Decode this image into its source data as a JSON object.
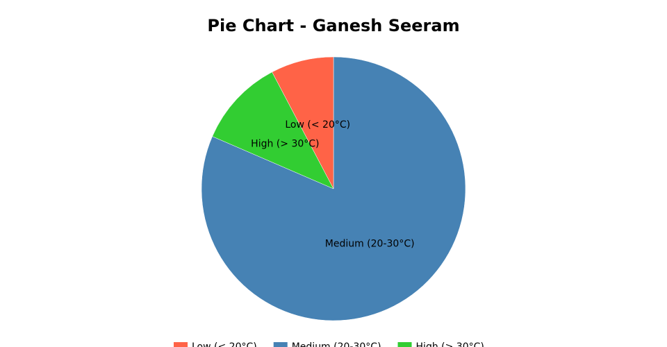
{
  "chart_data": {
    "type": "pie",
    "title": "Pie Chart - Ganesh Seeram",
    "categories": [
      "Low (< 20°C)",
      "Medium (20-30°C)",
      "High (> 30°C)"
    ],
    "values": [
      7.7,
      81.5,
      10.8
    ],
    "colors": [
      "#ff6347",
      "#4682b4",
      "#32cd32"
    ],
    "sort": "descending",
    "direction": "clockwise",
    "legend": "bottom"
  }
}
